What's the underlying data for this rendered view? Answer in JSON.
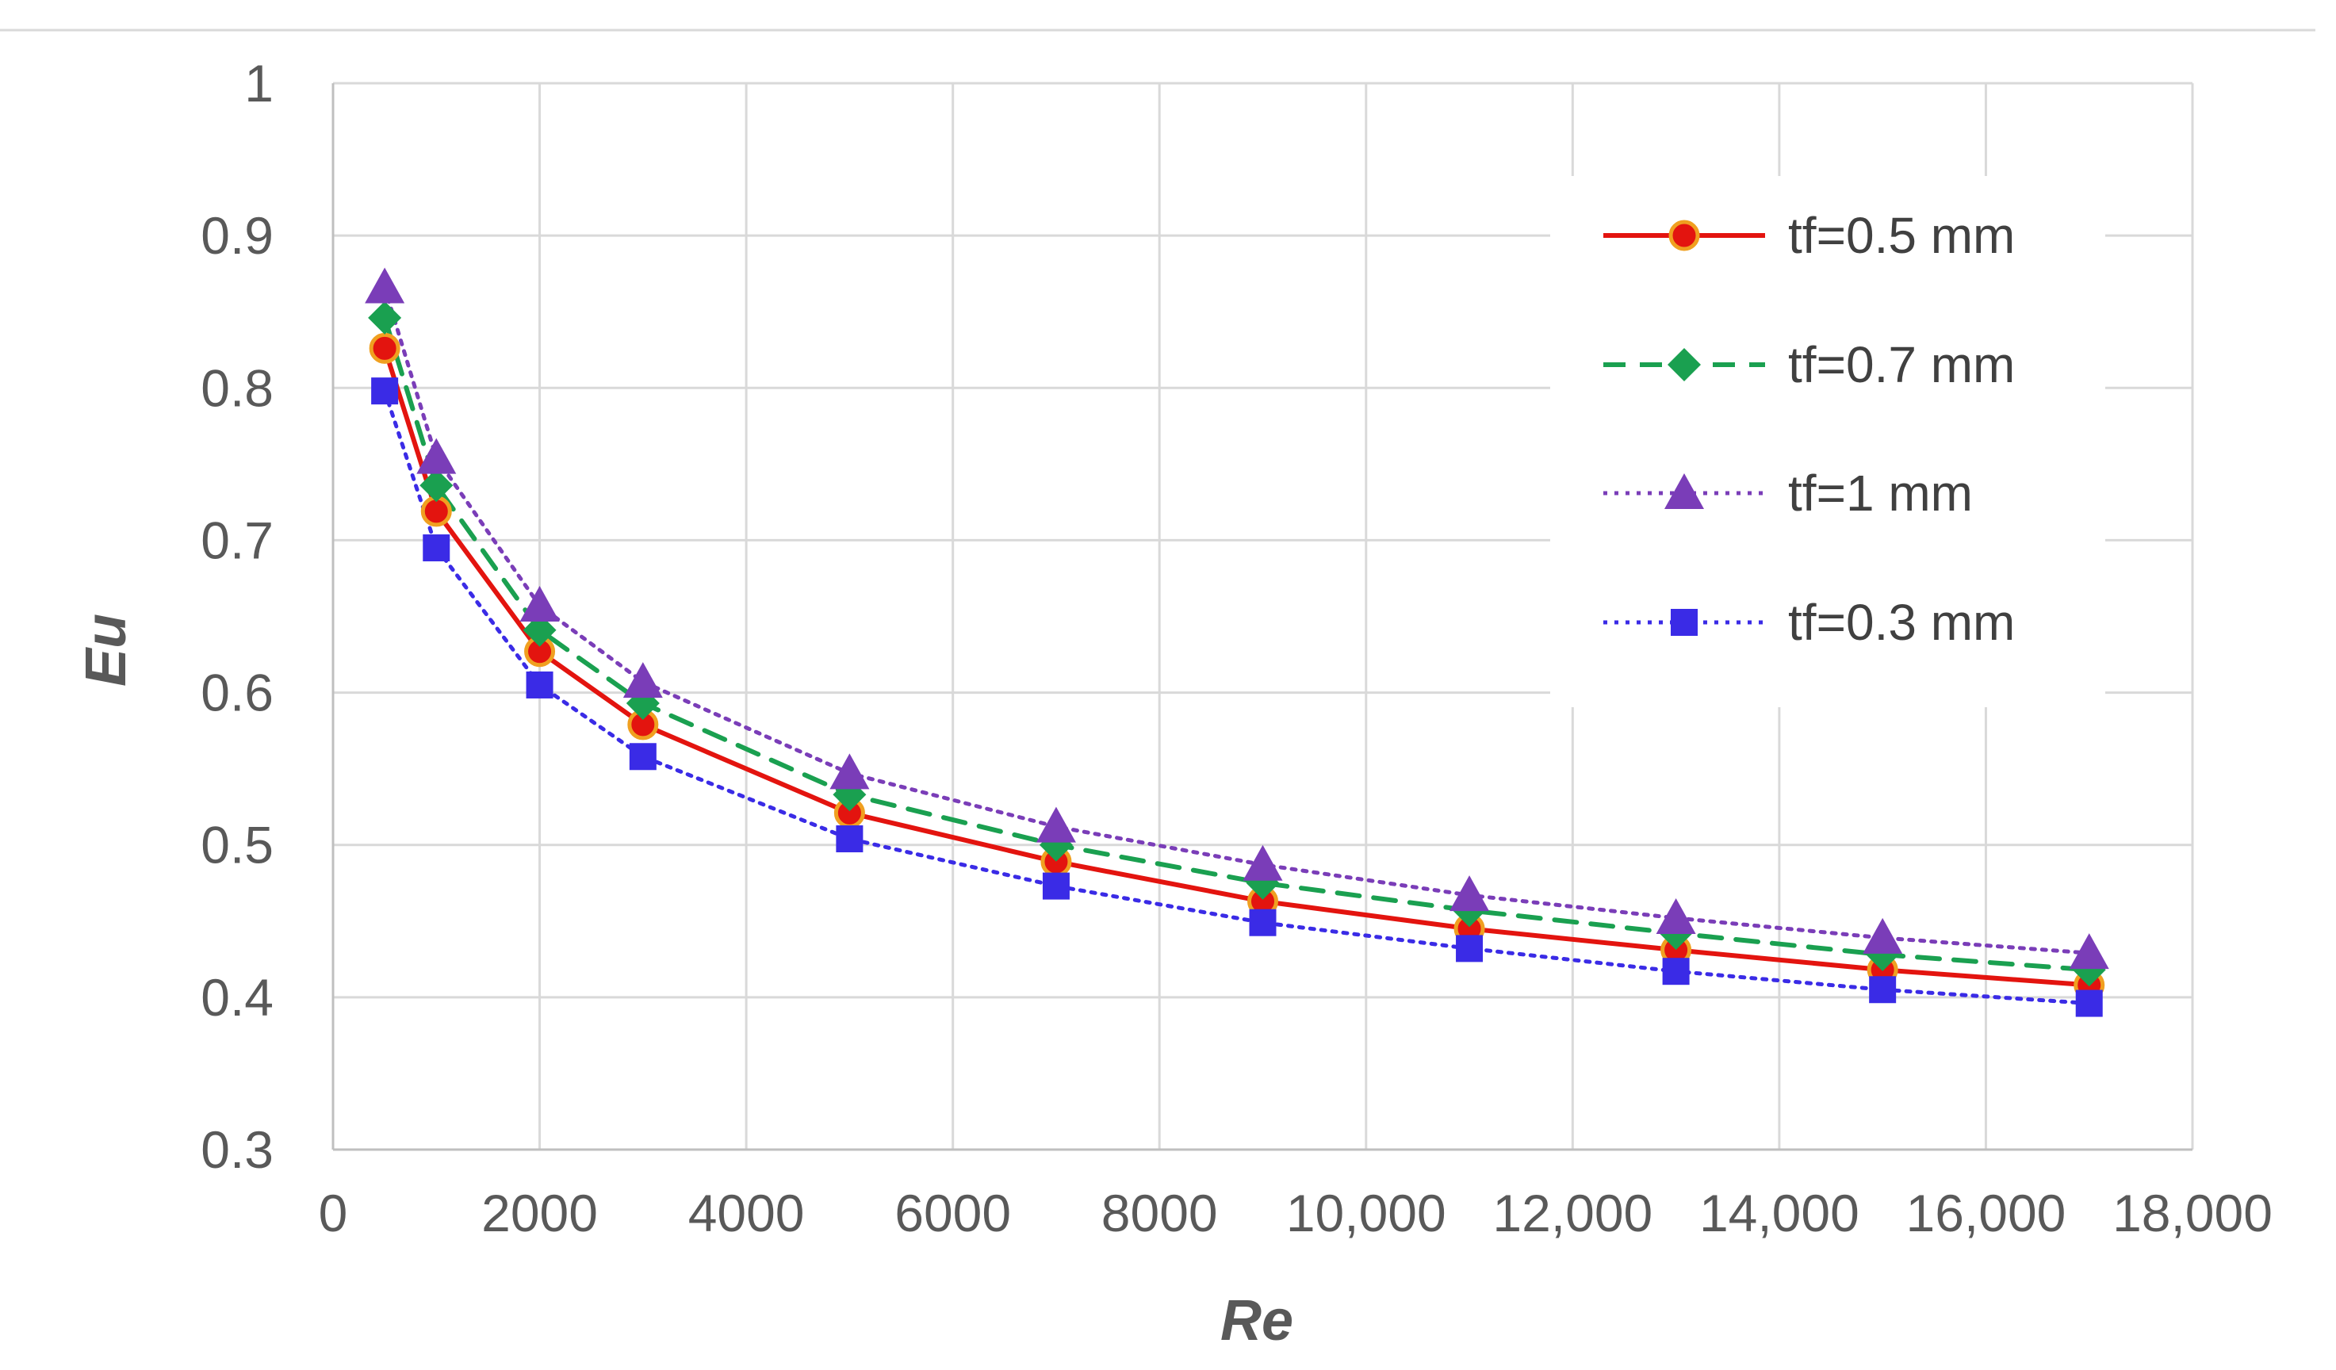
{
  "chart_data": {
    "type": "line",
    "title": "",
    "xlabel": "Re",
    "ylabel": "Eu",
    "xlim": [
      0,
      18000
    ],
    "ylim": [
      0.3,
      1.0
    ],
    "grid": true,
    "legend_position": "top-right",
    "x": [
      500,
      1000,
      2000,
      3000,
      5000,
      7000,
      9000,
      11000,
      13000,
      15000,
      17000
    ],
    "x_ticks": [
      0,
      2000,
      4000,
      6000,
      8000,
      10000,
      12000,
      14000,
      16000,
      18000
    ],
    "x_tick_labels": [
      "0",
      "2000",
      "4000",
      "6000",
      "8000",
      "10,000",
      "12,000",
      "14,000",
      "16,000",
      "18,000"
    ],
    "y_ticks": [
      0.3,
      0.4,
      0.5,
      0.6,
      0.7,
      0.8,
      0.9,
      1.0
    ],
    "y_tick_labels": [
      "0.3",
      "0.4",
      "0.5",
      "0.6",
      "0.7",
      "0.8",
      "0.9",
      "1"
    ],
    "series": [
      {
        "name": "tf=0.5 mm",
        "color": "#e3140f",
        "marker": "circle",
        "marker_fill": "#e3140f",
        "marker_stroke": "#f0a020",
        "line_style": "solid",
        "values": [
          0.826,
          0.719,
          0.627,
          0.579,
          0.521,
          0.489,
          0.463,
          0.445,
          0.431,
          0.418,
          0.408
        ]
      },
      {
        "name": "tf=0.7 mm",
        "color": "#1aa050",
        "marker": "diamond",
        "marker_fill": "#1aa050",
        "marker_stroke": "#1aa050",
        "line_style": "dashed",
        "values": [
          0.846,
          0.736,
          0.641,
          0.593,
          0.533,
          0.5,
          0.475,
          0.457,
          0.442,
          0.428,
          0.418
        ]
      },
      {
        "name": "tf=1 mm",
        "color": "#7a3db8",
        "marker": "triangle",
        "marker_fill": "#7a3db8",
        "marker_stroke": "#7a3db8",
        "line_style": "dotted",
        "values": [
          0.866,
          0.754,
          0.657,
          0.607,
          0.547,
          0.512,
          0.487,
          0.467,
          0.452,
          0.439,
          0.429
        ]
      },
      {
        "name": "tf=0.3 mm",
        "color": "#3a2be6",
        "marker": "square",
        "marker_fill": "#3a2be6",
        "marker_stroke": "#3a2be6",
        "line_style": "dotted",
        "values": [
          0.798,
          0.695,
          0.605,
          0.558,
          0.504,
          0.473,
          0.449,
          0.432,
          0.417,
          0.405,
          0.396
        ]
      }
    ]
  }
}
